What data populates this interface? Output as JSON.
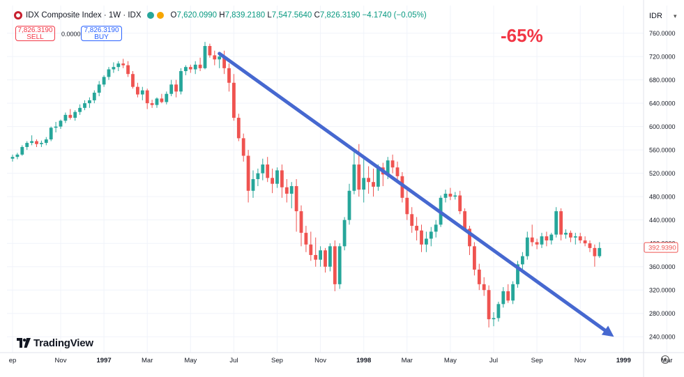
{
  "header": {
    "symbol": "IDX Composite Index · 1W · IDX",
    "open_label": "O",
    "open": "7,620.0990",
    "high_label": "H",
    "high": "7,839.2180",
    "low_label": "L",
    "low": "7,547.5640",
    "close_label": "C",
    "close": "7,826.3190",
    "change": "−4.1740 (−0.05%)",
    "dot_colors": [
      "#26a69a",
      "#f7a600"
    ]
  },
  "trade": {
    "sell_price": "7,826.3190",
    "sell_label": "SELL",
    "spread": "0.0000",
    "buy_price": "7,826.3190",
    "buy_label": "BUY"
  },
  "annotation_text": "-65%",
  "currency": "IDR",
  "brand": "TradingView",
  "colors": {
    "up": "#26a69a",
    "down": "#ef5350",
    "arrow": "#4668d0",
    "grid": "#f0f3fa"
  },
  "chart_data": {
    "type": "candlestick",
    "title": "IDX Composite Index · 1W · IDX",
    "ylabel": "IDR",
    "ylim": [
      220,
      775
    ],
    "y_ticks": [
      "760.0000",
      "720.0000",
      "680.0000",
      "640.0000",
      "600.0000",
      "560.0000",
      "520.0000",
      "480.0000",
      "440.0000",
      "400.0000",
      "360.0000",
      "320.0000",
      "280.0000",
      "240.0000"
    ],
    "y_tick_values": [
      760,
      720,
      680,
      640,
      600,
      560,
      520,
      480,
      440,
      400,
      360,
      320,
      280,
      240
    ],
    "x_ticks": [
      "ep",
      "Nov",
      "1997",
      "Mar",
      "May",
      "Jul",
      "Sep",
      "Nov",
      "1998",
      "Mar",
      "May",
      "Jul",
      "Sep",
      "Nov",
      "1999",
      "Mar"
    ],
    "x_tick_index": [
      0,
      10,
      19,
      28,
      37,
      46,
      55,
      64,
      73,
      82,
      91,
      100,
      109,
      118,
      127,
      136
    ],
    "last_price_label": "392.9390",
    "last_price": 392.939,
    "candles": [
      [
        545,
        552,
        540,
        548
      ],
      [
        548,
        555,
        544,
        552
      ],
      [
        552,
        568,
        550,
        565
      ],
      [
        565,
        575,
        560,
        572
      ],
      [
        572,
        585,
        568,
        575
      ],
      [
        575,
        578,
        565,
        570
      ],
      [
        570,
        576,
        565,
        572
      ],
      [
        572,
        582,
        568,
        578
      ],
      [
        578,
        600,
        575,
        598
      ],
      [
        598,
        608,
        590,
        600
      ],
      [
        600,
        612,
        596,
        610
      ],
      [
        610,
        624,
        606,
        620
      ],
      [
        620,
        630,
        612,
        615
      ],
      [
        615,
        628,
        610,
        625
      ],
      [
        625,
        638,
        620,
        632
      ],
      [
        632,
        645,
        628,
        640
      ],
      [
        640,
        650,
        632,
        645
      ],
      [
        645,
        662,
        640,
        658
      ],
      [
        658,
        678,
        652,
        672
      ],
      [
        672,
        688,
        668,
        685
      ],
      [
        685,
        702,
        680,
        698
      ],
      [
        698,
        710,
        692,
        702
      ],
      [
        702,
        712,
        695,
        708
      ],
      [
        708,
        716,
        700,
        705
      ],
      [
        705,
        712,
        685,
        690
      ],
      [
        690,
        695,
        665,
        668
      ],
      [
        668,
        675,
        650,
        655
      ],
      [
        655,
        668,
        645,
        662
      ],
      [
        662,
        665,
        630,
        640
      ],
      [
        640,
        646,
        632,
        637
      ],
      [
        637,
        650,
        632,
        648
      ],
      [
        648,
        656,
        640,
        642
      ],
      [
        642,
        660,
        638,
        656
      ],
      [
        656,
        680,
        652,
        672
      ],
      [
        672,
        680,
        650,
        660
      ],
      [
        660,
        700,
        655,
        695
      ],
      [
        695,
        705,
        688,
        702
      ],
      [
        702,
        706,
        692,
        698
      ],
      [
        698,
        712,
        690,
        706
      ],
      [
        706,
        718,
        695,
        700
      ],
      [
        700,
        745,
        698,
        738
      ],
      [
        738,
        742,
        718,
        722
      ],
      [
        722,
        730,
        705,
        715
      ],
      [
        715,
        722,
        700,
        720
      ],
      [
        720,
        730,
        690,
        700
      ],
      [
        700,
        708,
        660,
        675
      ],
      [
        675,
        690,
        610,
        615
      ],
      [
        615,
        622,
        575,
        580
      ],
      [
        580,
        588,
        540,
        550
      ],
      [
        550,
        560,
        470,
        490
      ],
      [
        490,
        525,
        478,
        510
      ],
      [
        510,
        528,
        498,
        520
      ],
      [
        520,
        545,
        508,
        535
      ],
      [
        535,
        548,
        505,
        512
      ],
      [
        512,
        528,
        486,
        502
      ],
      [
        502,
        530,
        495,
        525
      ],
      [
        525,
        535,
        478,
        496
      ],
      [
        496,
        510,
        470,
        485
      ],
      [
        485,
        505,
        460,
        498
      ],
      [
        498,
        510,
        420,
        455
      ],
      [
        455,
        465,
        395,
        418
      ],
      [
        418,
        430,
        385,
        398
      ],
      [
        398,
        420,
        370,
        380
      ],
      [
        380,
        410,
        360,
        372
      ],
      [
        372,
        395,
        360,
        388
      ],
      [
        388,
        392,
        350,
        360
      ],
      [
        360,
        400,
        352,
        395
      ],
      [
        395,
        405,
        318,
        330
      ],
      [
        330,
        400,
        322,
        395
      ],
      [
        395,
        445,
        388,
        440
      ],
      [
        440,
        502,
        432,
        490
      ],
      [
        490,
        560,
        484,
        535
      ],
      [
        535,
        570,
        480,
        492
      ],
      [
        492,
        550,
        470,
        512
      ],
      [
        512,
        532,
        485,
        505
      ],
      [
        505,
        528,
        480,
        497
      ],
      [
        497,
        535,
        490,
        530
      ],
      [
        530,
        538,
        498,
        518
      ],
      [
        518,
        548,
        510,
        542
      ],
      [
        542,
        552,
        520,
        530
      ],
      [
        530,
        540,
        505,
        515
      ],
      [
        515,
        522,
        470,
        478
      ],
      [
        478,
        495,
        440,
        450
      ],
      [
        450,
        462,
        418,
        430
      ],
      [
        430,
        445,
        405,
        422
      ],
      [
        422,
        432,
        385,
        398
      ],
      [
        398,
        420,
        385,
        408
      ],
      [
        408,
        428,
        395,
        420
      ],
      [
        420,
        440,
        410,
        432
      ],
      [
        432,
        482,
        428,
        478
      ],
      [
        478,
        492,
        470,
        485
      ],
      [
        485,
        495,
        474,
        480
      ],
      [
        480,
        488,
        475,
        482
      ],
      [
        482,
        490,
        450,
        455
      ],
      [
        455,
        460,
        420,
        425
      ],
      [
        425,
        430,
        380,
        395
      ],
      [
        395,
        402,
        345,
        355
      ],
      [
        355,
        365,
        320,
        330
      ],
      [
        330,
        342,
        310,
        320
      ],
      [
        320,
        328,
        256,
        270
      ],
      [
        270,
        282,
        258,
        272
      ],
      [
        272,
        300,
        266,
        296
      ],
      [
        296,
        325,
        290,
        318
      ],
      [
        318,
        330,
        298,
        302
      ],
      [
        302,
        335,
        296,
        330
      ],
      [
        330,
        370,
        324,
        364
      ],
      [
        364,
        385,
        356,
        378
      ],
      [
        378,
        420,
        372,
        410
      ],
      [
        410,
        432,
        395,
        402
      ],
      [
        402,
        408,
        390,
        398
      ],
      [
        398,
        418,
        392,
        412
      ],
      [
        412,
        420,
        395,
        405
      ],
      [
        405,
        418,
        398,
        415
      ],
      [
        415,
        462,
        410,
        455
      ],
      [
        455,
        460,
        405,
        415
      ],
      [
        415,
        424,
        408,
        418
      ],
      [
        418,
        422,
        402,
        410
      ],
      [
        410,
        418,
        398,
        412
      ],
      [
        412,
        418,
        400,
        405
      ],
      [
        405,
        412,
        395,
        400
      ],
      [
        400,
        405,
        385,
        392
      ],
      [
        392,
        398,
        360,
        378
      ],
      [
        378,
        402,
        375,
        392
      ]
    ],
    "arrow": {
      "from": {
        "index": 43,
        "price": 725
      },
      "to": {
        "index": 125,
        "price": 240
      },
      "label": "-65%"
    }
  }
}
